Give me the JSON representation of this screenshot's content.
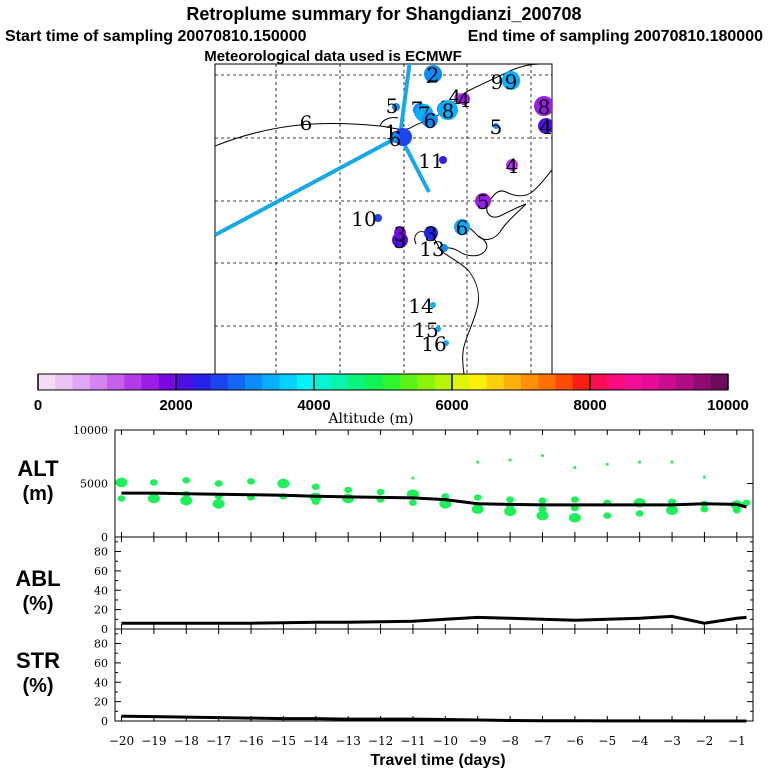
{
  "header": {
    "title": "Retroplume summary for Shangdianzi_200708",
    "start_label": "Start time of sampling 20070810.150000",
    "end_label": "End time of sampling 20070810.180000",
    "met_label": "Meteorological data used is ECMWF"
  },
  "colorbar": {
    "label": "Altitude (m)",
    "ticks": [
      "0",
      "2000",
      "4000",
      "6000",
      "8000",
      "10000"
    ],
    "min": 0,
    "max": 10000,
    "colors": [
      "#f4dcf4",
      "#ecc4f4",
      "#e0a8f4",
      "#d484f0",
      "#c660ec",
      "#b43ce8",
      "#9c1ce8",
      "#7808e4",
      "#4c10e0",
      "#2424e8",
      "#1c44f0",
      "#1466f4",
      "#0c8cf8",
      "#08b0fc",
      "#08d0fc",
      "#08f0f8",
      "#08f4d0",
      "#08f4a8",
      "#08f47c",
      "#10f454",
      "#30f430",
      "#5cf418",
      "#8cf408",
      "#b8f408",
      "#e0f408",
      "#fcf008",
      "#fcd008",
      "#fcb008",
      "#fc9008",
      "#fc7008",
      "#fc4c08",
      "#fc1c18",
      "#fc0c50",
      "#fc0c80",
      "#f40c9c",
      "#e40c98",
      "#cc0c90",
      "#b00c84",
      "#900c70",
      "#6c0c5c"
    ]
  },
  "map": {
    "clusters": [
      {
        "label": "1",
        "alt": 2600
      },
      {
        "label": "2",
        "alt": 3300
      },
      {
        "label": "3",
        "alt": 3200
      },
      {
        "label": "4",
        "alt": 1000
      },
      {
        "label": "5",
        "alt": 3100
      },
      {
        "label": "6",
        "alt": 1800
      },
      {
        "label": "7",
        "alt": 3200
      },
      {
        "label": "8",
        "alt": 3200
      },
      {
        "label": "9",
        "alt": 3300
      },
      {
        "label": "10",
        "alt": 2500
      },
      {
        "label": "11",
        "alt": 2400
      },
      {
        "label": "13",
        "alt": 3100
      },
      {
        "label": "14",
        "alt": 3300
      },
      {
        "label": "15",
        "alt": 3400
      },
      {
        "label": "16",
        "alt": 3300
      },
      {
        "label": "2",
        "alt": 3200
      },
      {
        "label": "9",
        "alt": 3300
      },
      {
        "label": "8",
        "alt": 3300
      },
      {
        "label": "7",
        "alt": 3300
      },
      {
        "label": "6",
        "alt": 3200
      },
      {
        "label": "5",
        "alt": 3200
      },
      {
        "label": "4",
        "alt": 1500
      },
      {
        "label": "3",
        "alt": 2200
      },
      {
        "label": "6",
        "alt": 3400
      },
      {
        "label": "5",
        "alt": 1600
      },
      {
        "label": "4",
        "alt": 1300
      },
      {
        "label": "3",
        "alt": 1800
      },
      {
        "label": "8",
        "alt": 1700
      },
      {
        "label": "4",
        "alt": 2200
      },
      {
        "label": "3",
        "alt": 2300
      },
      {
        "label": "6",
        "alt": 3200
      }
    ]
  },
  "chart_data": [
    {
      "type": "scatter",
      "panel": "ALT",
      "ylabel": "ALT\n(m)",
      "ylabel_line1": "ALT",
      "ylabel_line2": "(m)",
      "xlim": [
        -20.2,
        -0.5
      ],
      "ylim": [
        0,
        10000
      ],
      "yticks": [
        "0",
        "5000",
        "10000"
      ],
      "series": [
        {
          "name": "mean altitude",
          "x": [
            -20,
            -19,
            -18,
            -17,
            -16,
            -15,
            -14,
            -13,
            -12,
            -11,
            -10,
            -9,
            -8,
            -7,
            -6,
            -5,
            -4,
            -3,
            -2,
            -1,
            -0.7
          ],
          "y": [
            4100,
            4100,
            4050,
            4000,
            3950,
            3900,
            3800,
            3750,
            3700,
            3650,
            3500,
            3100,
            3050,
            3000,
            3000,
            3000,
            3000,
            3000,
            3100,
            3050,
            2800
          ]
        },
        {
          "name": "cluster altitudes",
          "x": [
            -20,
            -20,
            -19,
            -19,
            -18,
            -18,
            -18,
            -17,
            -17,
            -17,
            -16,
            -16,
            -15,
            -15,
            -14,
            -14,
            -14,
            -13,
            -13,
            -12,
            -12,
            -11,
            -11,
            -10,
            -10,
            -9,
            -9,
            -9,
            -8,
            -8,
            -8,
            -7,
            -7,
            -7,
            -6,
            -6,
            -6,
            -5,
            -5,
            -4,
            -4,
            -3,
            -3,
            -2,
            -2,
            -1,
            -1,
            -0.7
          ],
          "y": [
            5100,
            3600,
            5100,
            3600,
            5300,
            4000,
            3400,
            5000,
            3800,
            3100,
            5200,
            3700,
            5000,
            3800,
            4700,
            3700,
            3300,
            4400,
            3600,
            4200,
            3500,
            4000,
            3200,
            3800,
            3100,
            3700,
            3000,
            2600,
            3500,
            2900,
            2400,
            3400,
            2600,
            2000,
            3500,
            2700,
            1800,
            3200,
            2000,
            3200,
            2200,
            3300,
            2500,
            3100,
            2600,
            3000,
            2500,
            3200
          ]
        },
        {
          "name": "upper dots",
          "x": [
            -11,
            -9,
            -8,
            -7,
            -6,
            -5,
            -4,
            -3,
            -2
          ],
          "y": [
            5500,
            7000,
            7200,
            7600,
            6500,
            6800,
            7000,
            7000,
            5600
          ]
        }
      ]
    },
    {
      "type": "line",
      "panel": "ABL",
      "ylabel": "ABL\n(%)",
      "ylabel_line1": "ABL",
      "ylabel_line2": "(%)",
      "xlim": [
        -20.2,
        -0.5
      ],
      "ylim": [
        0,
        90
      ],
      "yticks": [
        "0",
        "20",
        "40",
        "60",
        "80"
      ],
      "series": [
        {
          "name": "ABL fraction",
          "x": [
            -20,
            -19,
            -18,
            -17,
            -16,
            -15,
            -14,
            -13,
            -12,
            -11,
            -10,
            -9,
            -8,
            -7,
            -6,
            -5,
            -4,
            -3,
            -2,
            -1,
            -0.7
          ],
          "y": [
            6,
            6,
            6,
            6,
            6,
            6.5,
            7,
            7,
            7.5,
            8,
            10,
            12,
            11,
            10,
            9,
            10,
            11,
            13,
            6,
            11,
            12
          ]
        }
      ]
    },
    {
      "type": "line",
      "panel": "STR",
      "ylabel": "STR\n(%)",
      "ylabel_line1": "STR",
      "ylabel_line2": "(%)",
      "xlim": [
        -20.2,
        -0.5
      ],
      "ylim": [
        0,
        90
      ],
      "yticks": [
        "0",
        "20",
        "40",
        "60",
        "80"
      ],
      "xlabel": "Travel time (days)",
      "xticks": [
        "-20",
        "-19",
        "-18",
        "-17",
        "-16",
        "-15",
        "-14",
        "-13",
        "-12",
        "-11",
        "-10",
        "-9",
        "-8",
        "-7",
        "-6",
        "-5",
        "-4",
        "-3",
        "-2",
        "-1"
      ],
      "series": [
        {
          "name": "stratospheric fraction",
          "x": [
            -20,
            -19,
            -18,
            -17,
            -16,
            -15,
            -14,
            -13,
            -12,
            -11,
            -10,
            -9,
            -8,
            -7,
            -6,
            -5,
            -4,
            -3,
            -2,
            -1,
            -0.7
          ],
          "y": [
            5,
            4.5,
            4,
            3.5,
            3,
            2.5,
            2.5,
            2,
            2,
            2,
            1.5,
            1,
            0.5,
            0.3,
            0.2,
            0.1,
            0.1,
            0.1,
            0,
            0,
            0
          ]
        }
      ]
    }
  ]
}
